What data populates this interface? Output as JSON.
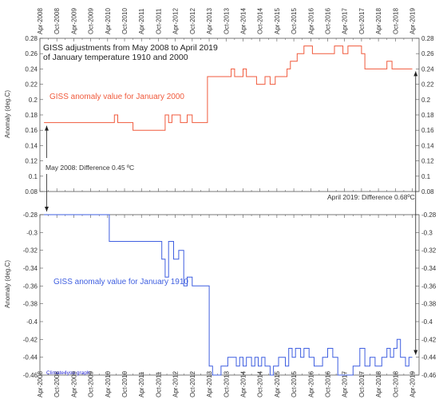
{
  "chart_data": [
    {
      "type": "line",
      "title": "GISS adjustments from May 2008 to April 2019",
      "subtitle": "of January temperature 1910 and 2000",
      "ylabel": "Anomaly (deg.C)",
      "ylim": [
        0.08,
        0.28
      ],
      "yticks": [
        "0.08",
        "0.1",
        "0.12",
        "0.14",
        "0.16",
        "0.18",
        "0.2",
        "0.22",
        "0.24",
        "0.26",
        "0.28"
      ],
      "series": [
        {
          "name": "GISS anomaly value for January 2000",
          "color": "#f05a3c",
          "x": [
            2008.37,
            2010.45,
            2010.55,
            2011.0,
            2011.95,
            2012.05,
            2012.15,
            2012.4,
            2012.6,
            2012.75,
            2013.2,
            2013.9,
            2014.0,
            2014.25,
            2014.35,
            2014.65,
            2014.9,
            2015.05,
            2015.2,
            2015.55,
            2015.65,
            2015.85,
            2016.05,
            2016.3,
            2016.95,
            2017.2,
            2017.35,
            2017.75,
            2017.85,
            2018.5,
            2018.65,
            2018.75,
            2019.25
          ],
          "y": [
            0.17,
            0.18,
            0.17,
            0.16,
            0.18,
            0.17,
            0.18,
            0.17,
            0.18,
            0.17,
            0.23,
            0.24,
            0.23,
            0.24,
            0.23,
            0.22,
            0.23,
            0.22,
            0.23,
            0.24,
            0.25,
            0.26,
            0.27,
            0.26,
            0.27,
            0.26,
            0.27,
            0.26,
            0.24,
            0.25,
            0.24,
            0.24,
            0.24
          ]
        }
      ]
    },
    {
      "type": "line",
      "ylabel": "Anomaly (deg.C)",
      "ylim": [
        -0.46,
        -0.28
      ],
      "yticks": [
        "-0.46",
        "-0.44",
        "-0.42",
        "-0.4",
        "-0.38",
        "-0.36",
        "-0.34",
        "-0.32",
        "-0.3",
        "-0.28"
      ],
      "series": [
        {
          "name": "GISS anomaly value for January 1910",
          "color": "#3f5fe0",
          "x": [
            2008.37,
            2010.3,
            2011.85,
            2011.95,
            2012.05,
            2012.2,
            2012.35,
            2012.5,
            2012.6,
            2012.75,
            2013.25,
            2013.35,
            2013.6,
            2013.8,
            2014.05,
            2014.15,
            2014.25,
            2014.35,
            2014.5,
            2014.6,
            2014.7,
            2014.8,
            2014.9,
            2015.05,
            2015.15,
            2015.3,
            2015.5,
            2015.6,
            2015.7,
            2015.8,
            2015.95,
            2016.05,
            2016.2,
            2016.35,
            2016.6,
            2016.75,
            2016.9,
            2017.05,
            2017.5,
            2017.7,
            2017.85,
            2018.0,
            2018.15,
            2018.35,
            2018.5,
            2018.6,
            2018.7,
            2018.8,
            2018.9,
            2019.05,
            2019.15,
            2019.25
          ],
          "y": [
            -0.28,
            -0.31,
            -0.33,
            -0.35,
            -0.31,
            -0.33,
            -0.32,
            -0.36,
            -0.35,
            -0.36,
            -0.45,
            -0.46,
            -0.45,
            -0.44,
            -0.45,
            -0.44,
            -0.45,
            -0.44,
            -0.45,
            -0.44,
            -0.45,
            -0.44,
            -0.45,
            -0.46,
            -0.45,
            -0.44,
            -0.45,
            -0.43,
            -0.44,
            -0.43,
            -0.44,
            -0.43,
            -0.44,
            -0.45,
            -0.44,
            -0.43,
            -0.44,
            -0.46,
            -0.45,
            -0.43,
            -0.45,
            -0.44,
            -0.45,
            -0.44,
            -0.43,
            -0.44,
            -0.43,
            -0.42,
            -0.44,
            -0.45,
            -0.44,
            -0.44
          ]
        }
      ]
    }
  ],
  "x_axis": {
    "xlim": [
      2008.25,
      2019.45
    ],
    "tick_labels": [
      "Apr-2008",
      "Oct-2008",
      "Apr-2009",
      "Oct-2009",
      "Apr-2010",
      "Oct-2010",
      "Apr-2011",
      "Oct-2011",
      "Apr-2012",
      "Oct-2012",
      "Apr-2013",
      "Oct-2013",
      "Apr-2014",
      "Oct-2014",
      "Apr-2015",
      "Oct-2015",
      "Apr-2016",
      "Oct-2016",
      "Apr-2017",
      "Oct-2017",
      "Apr-2018",
      "Oct-2018",
      "Apr-2019"
    ]
  },
  "annotations": {
    "start_note": "May 2008: Difference 0.45 ºC",
    "end_note": "April 2019: Difference 0.68ºC",
    "credit": "Climate4you graph",
    "credit_color": "#2b2bd6"
  },
  "colors": {
    "gridline": "#bbbbbb",
    "frame": "#555555"
  }
}
